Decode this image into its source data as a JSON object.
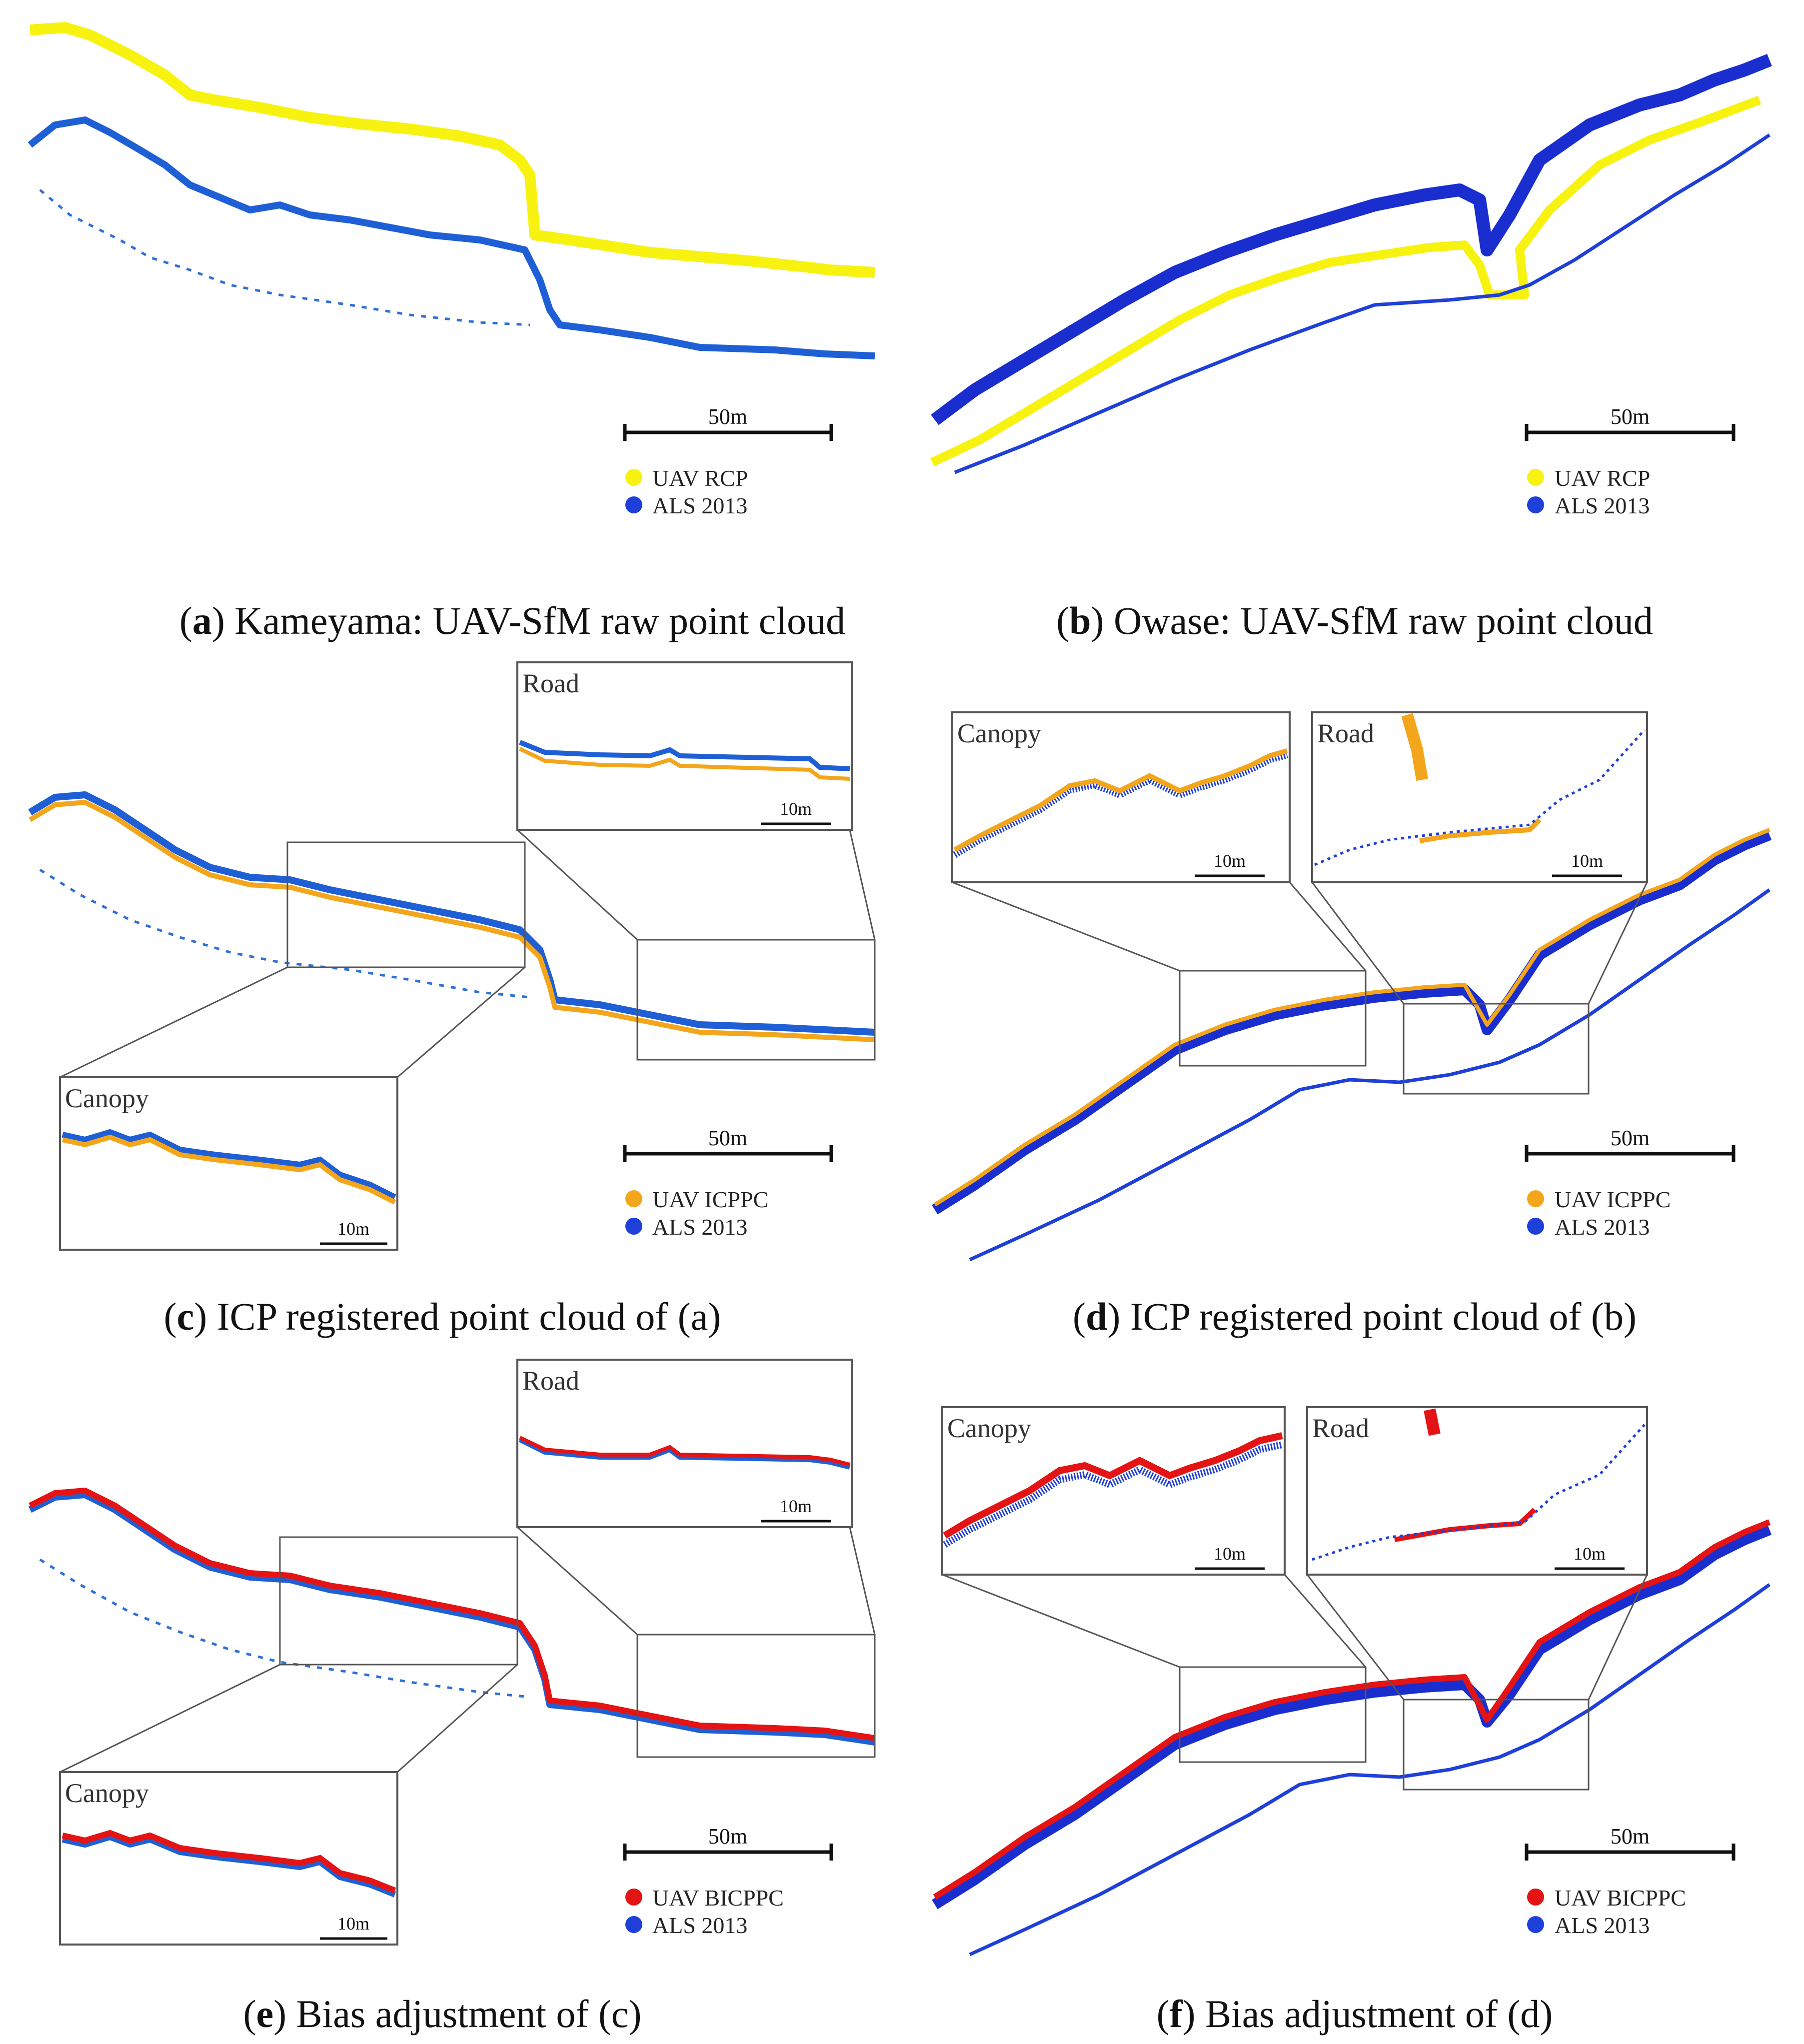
{
  "colors": {
    "als": "#1f3fd9",
    "als_light": "#2f6fd8",
    "rcp": "#f7f20f",
    "icppc": "#f3a51b",
    "bicppc": "#e51414",
    "frame": "#555555"
  },
  "panels": [
    {
      "id": "a",
      "caption_letter": "a",
      "caption_text": ") Kameyama: UAV-SfM raw point cloud",
      "scale_label": "50m",
      "legend": [
        {
          "label": "UAV RCP",
          "color": "#f7f20f"
        },
        {
          "label": "ALS 2013",
          "color": "#1f3fd9"
        }
      ]
    },
    {
      "id": "b",
      "caption_letter": "b",
      "caption_text": ") Owase: UAV-SfM raw point cloud",
      "scale_label": "50m",
      "legend": [
        {
          "label": "UAV RCP",
          "color": "#f7f20f"
        },
        {
          "label": "ALS 2013",
          "color": "#1f3fd9"
        }
      ]
    },
    {
      "id": "c",
      "caption_letter": "c",
      "caption_text": ") ICP registered point cloud of (a)",
      "scale_label": "50m",
      "legend": [
        {
          "label": "UAV ICPPC",
          "color": "#f3a51b"
        },
        {
          "label": "ALS 2013",
          "color": "#1f3fd9"
        }
      ],
      "insets": [
        {
          "title": "Road",
          "scale_label": "10m"
        },
        {
          "title": "Canopy",
          "scale_label": "10m"
        }
      ]
    },
    {
      "id": "d",
      "caption_letter": "d",
      "caption_text": ") ICP registered point cloud of (b)",
      "scale_label": "50m",
      "legend": [
        {
          "label": "UAV ICPPC",
          "color": "#f3a51b"
        },
        {
          "label": "ALS 2013",
          "color": "#1f3fd9"
        }
      ],
      "insets": [
        {
          "title": "Canopy",
          "scale_label": "10m"
        },
        {
          "title": "Road",
          "scale_label": "10m"
        }
      ]
    },
    {
      "id": "e",
      "caption_letter": "e",
      "caption_text": ") Bias adjustment of (c)",
      "scale_label": "50m",
      "legend": [
        {
          "label": "UAV BICPPC",
          "color": "#e51414"
        },
        {
          "label": "ALS 2013",
          "color": "#1f3fd9"
        }
      ],
      "insets": [
        {
          "title": "Road",
          "scale_label": "10m"
        },
        {
          "title": "Canopy",
          "scale_label": "10m"
        }
      ]
    },
    {
      "id": "f",
      "caption_letter": "f",
      "caption_text": ") Bias adjustment of (d)",
      "scale_label": "50m",
      "legend": [
        {
          "label": "UAV BICPPC",
          "color": "#e51414"
        },
        {
          "label": "ALS 2013",
          "color": "#1f3fd9"
        }
      ],
      "insets": [
        {
          "title": "Canopy",
          "scale_label": "10m"
        },
        {
          "title": "Road",
          "scale_label": "10m"
        }
      ]
    }
  ]
}
